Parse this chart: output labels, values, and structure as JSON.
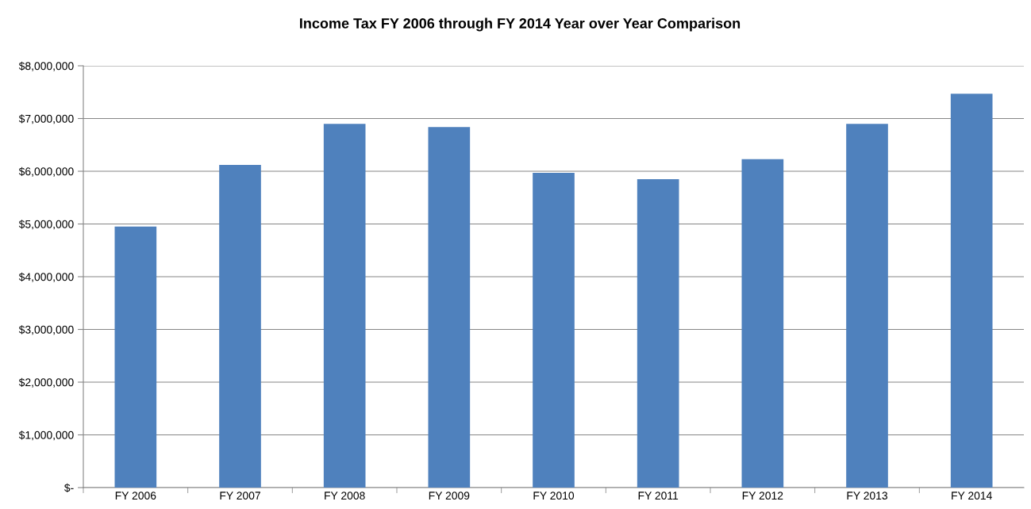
{
  "chart_data": {
    "type": "bar",
    "title": "Income Tax FY 2006 through FY 2014 Year over Year Comparison",
    "categories": [
      "FY 2006",
      "FY 2007",
      "FY 2008",
      "FY 2009",
      "FY 2010",
      "FY 2011",
      "FY 2012",
      "FY 2013",
      "FY 2014"
    ],
    "values": [
      4950000,
      6120000,
      6900000,
      6840000,
      5970000,
      5850000,
      6230000,
      6900000,
      7470000
    ],
    "color": "#4f81bd",
    "ylim": [
      0,
      8000000
    ],
    "yticks": [
      {
        "value": 0,
        "label": "$-"
      },
      {
        "value": 1000000,
        "label": "$1,000,000"
      },
      {
        "value": 2000000,
        "label": "$2,000,000"
      },
      {
        "value": 3000000,
        "label": "$3,000,000"
      },
      {
        "value": 4000000,
        "label": "$4,000,000"
      },
      {
        "value": 5000000,
        "label": "$5,000,000"
      },
      {
        "value": 6000000,
        "label": "$6,000,000"
      },
      {
        "value": 7000000,
        "label": "$7,000,000"
      },
      {
        "value": 8000000,
        "label": "$8,000,000"
      }
    ],
    "grid": "y",
    "legend": false
  }
}
